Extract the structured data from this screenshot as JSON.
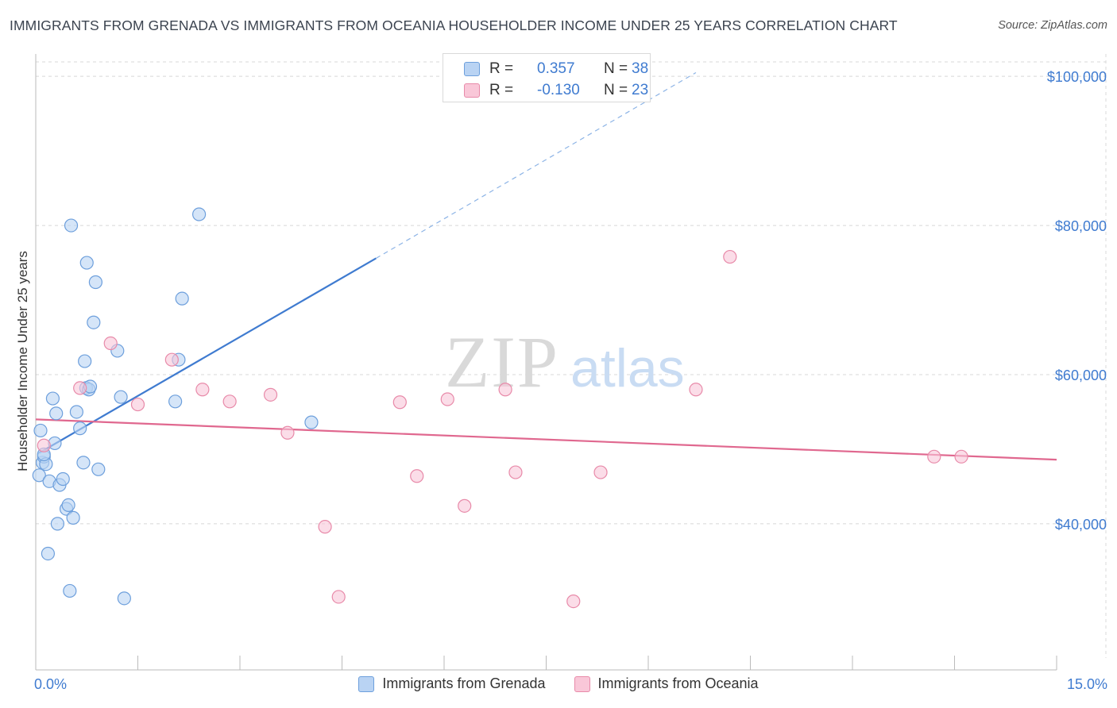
{
  "title": "IMMIGRANTS FROM GRENADA VS IMMIGRANTS FROM OCEANIA HOUSEHOLDER INCOME UNDER 25 YEARS CORRELATION CHART",
  "source": "Source: ZipAtlas.com",
  "watermark": {
    "zip": "ZIP",
    "atlas": "atlas"
  },
  "colors": {
    "blue": "#3f7bd0",
    "blue_fill": "#b9d3f3",
    "pink": "#e0688f",
    "pink_fill": "#f9c7d8",
    "grid": "#d8d8d8"
  },
  "legend_box": [
    {
      "r_label": "R =",
      "r_value": "0.357",
      "n_label": "N =",
      "n_value": "38"
    },
    {
      "r_label": "R =",
      "r_value": "-0.130",
      "n_label": "N =",
      "n_value": "23"
    }
  ],
  "chart_data": {
    "type": "scatter",
    "ylabel": "Householder Income Under 25 years",
    "xlabel": "",
    "xlim": [
      0,
      15
    ],
    "ylim": [
      22000,
      103000
    ],
    "x_tick_labels": {
      "min": "0.0%",
      "max": "15.0%"
    },
    "y_ticks": [
      {
        "value": 40000,
        "label": "$40,000"
      },
      {
        "value": 60000,
        "label": "$60,000"
      },
      {
        "value": 80000,
        "label": "$80,000"
      },
      {
        "value": 100000,
        "label": "$100,000"
      }
    ],
    "series": [
      {
        "name": "Immigrants from Grenada",
        "color": "blue",
        "points": [
          [
            0.05,
            46500
          ],
          [
            0.07,
            52500
          ],
          [
            0.1,
            48200
          ],
          [
            0.12,
            49000
          ],
          [
            0.15,
            48000
          ],
          [
            0.18,
            36000
          ],
          [
            0.2,
            45700
          ],
          [
            0.25,
            56800
          ],
          [
            0.28,
            50800
          ],
          [
            0.3,
            54800
          ],
          [
            0.32,
            40000
          ],
          [
            0.35,
            45200
          ],
          [
            0.4,
            46000
          ],
          [
            0.45,
            42000
          ],
          [
            0.48,
            42500
          ],
          [
            0.5,
            31000
          ],
          [
            0.52,
            80000
          ],
          [
            0.55,
            40800
          ],
          [
            0.65,
            52800
          ],
          [
            0.7,
            48200
          ],
          [
            0.72,
            61800
          ],
          [
            0.74,
            58200
          ],
          [
            0.75,
            75000
          ],
          [
            0.78,
            58000
          ],
          [
            0.8,
            58400
          ],
          [
            0.85,
            67000
          ],
          [
            0.88,
            72400
          ],
          [
            0.92,
            47300
          ],
          [
            1.2,
            63200
          ],
          [
            1.25,
            57000
          ],
          [
            1.3,
            30000
          ],
          [
            2.05,
            56400
          ],
          [
            2.1,
            62000
          ],
          [
            2.15,
            70200
          ],
          [
            2.4,
            81500
          ],
          [
            4.05,
            53600
          ],
          [
            0.12,
            49300
          ],
          [
            0.6,
            55000
          ]
        ]
      },
      {
        "name": "Immigrants from Oceania",
        "color": "pink",
        "points": [
          [
            0.12,
            50500
          ],
          [
            0.65,
            58200
          ],
          [
            1.1,
            64200
          ],
          [
            1.5,
            56000
          ],
          [
            2.0,
            62000
          ],
          [
            2.45,
            58000
          ],
          [
            2.85,
            56400
          ],
          [
            3.45,
            57300
          ],
          [
            3.7,
            52200
          ],
          [
            4.25,
            39600
          ],
          [
            4.45,
            30200
          ],
          [
            5.35,
            56300
          ],
          [
            5.6,
            46400
          ],
          [
            6.05,
            56700
          ],
          [
            6.3,
            42400
          ],
          [
            6.9,
            58000
          ],
          [
            7.05,
            46900
          ],
          [
            7.9,
            29600
          ],
          [
            8.3,
            46900
          ],
          [
            9.7,
            58000
          ],
          [
            10.2,
            75800
          ],
          [
            13.2,
            49000
          ],
          [
            13.6,
            49000
          ]
        ]
      }
    ],
    "trendlines": [
      {
        "series": "Immigrants from Grenada",
        "solid": [
          [
            0.05,
            49500
          ],
          [
            5.0,
            75600
          ]
        ],
        "dashed": [
          [
            5.0,
            75600
          ],
          [
            9.7,
            100500
          ]
        ]
      },
      {
        "series": "Immigrants from Oceania",
        "solid": [
          [
            0.0,
            54000
          ],
          [
            15.0,
            48600
          ]
        ]
      }
    ]
  }
}
